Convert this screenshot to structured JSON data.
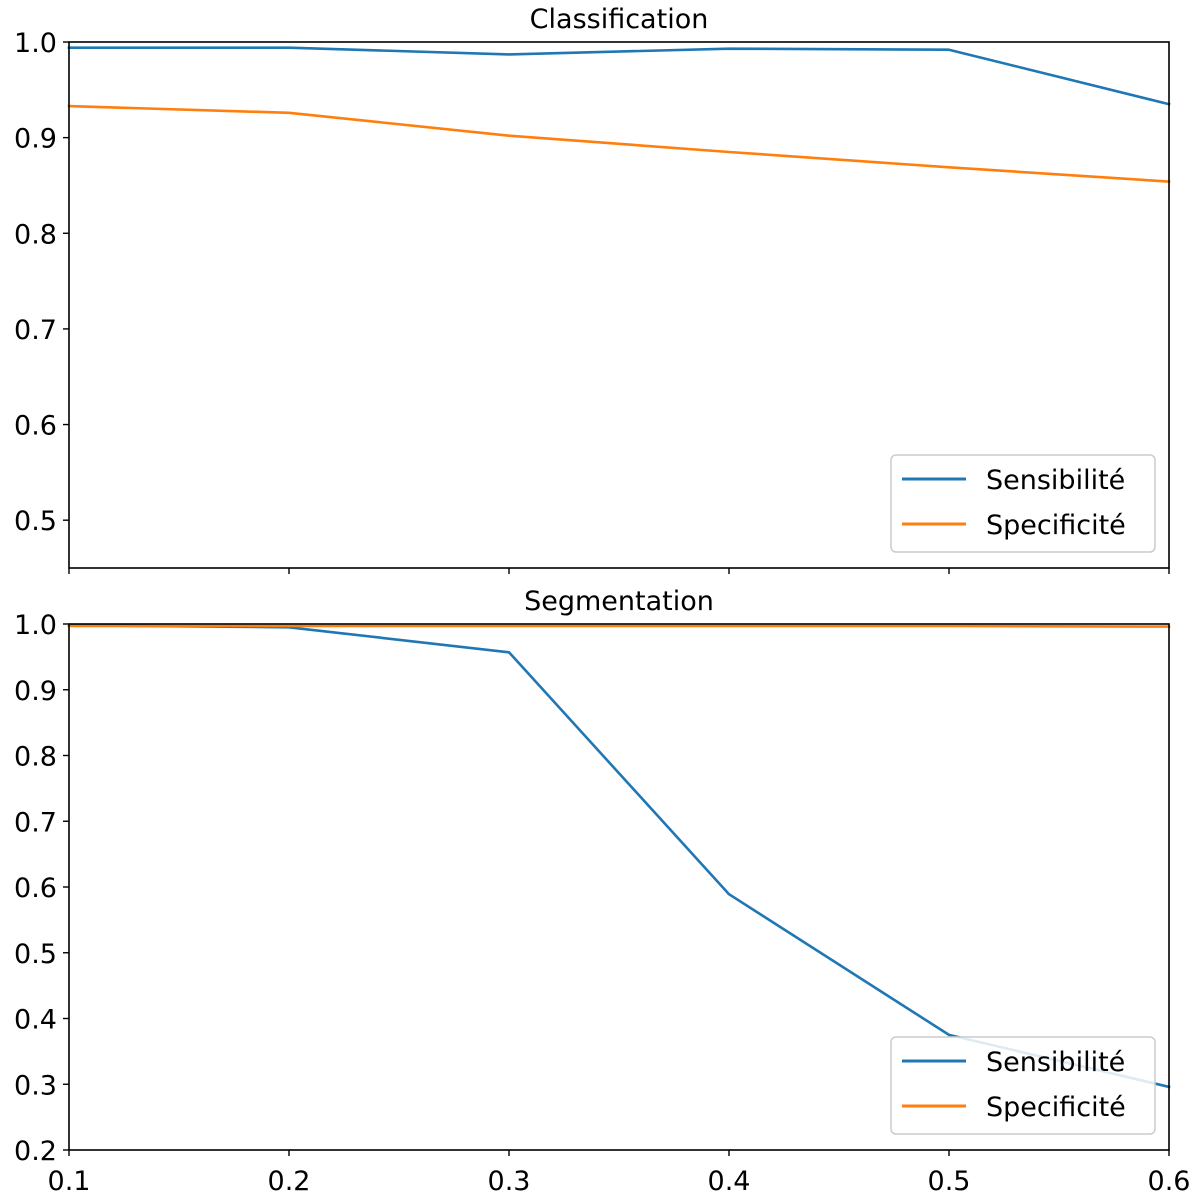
{
  "colors": {
    "sensibilite": "#1f77b4",
    "specificite": "#ff7f0e",
    "axes": "#000000",
    "legend_border": "#cccccc"
  },
  "chart_data": [
    {
      "type": "line",
      "title": "Classification",
      "x": [
        0.1,
        0.2,
        0.3,
        0.4,
        0.5,
        0.6
      ],
      "xlim": [
        0.1,
        0.6
      ],
      "ylim": [
        0.45,
        1.0
      ],
      "yticks": [
        "0.5",
        "0.6",
        "0.7",
        "0.8",
        "0.9",
        "1.0"
      ],
      "ytick_values": [
        0.5,
        0.6,
        0.7,
        0.8,
        0.9,
        1.0
      ],
      "xticks": [],
      "xtick_values": [
        0.1,
        0.2,
        0.3,
        0.4,
        0.5,
        0.6
      ],
      "legend_position": "lower-right",
      "grid": false,
      "series": [
        {
          "name": "Sensibilité",
          "color": "#1f77b4",
          "values": [
            0.994,
            0.994,
            0.987,
            0.993,
            0.992,
            0.935
          ]
        },
        {
          "name": "Specificité",
          "color": "#ff7f0e",
          "values": [
            0.933,
            0.926,
            0.902,
            0.885,
            0.869,
            0.854
          ]
        }
      ]
    },
    {
      "type": "line",
      "title": "Segmentation",
      "x": [
        0.1,
        0.2,
        0.3,
        0.4,
        0.5,
        0.6
      ],
      "xlim": [
        0.1,
        0.6
      ],
      "ylim": [
        0.2,
        1.0
      ],
      "yticks": [
        "0.2",
        "0.3",
        "0.4",
        "0.5",
        "0.6",
        "0.7",
        "0.8",
        "0.9",
        "1.0"
      ],
      "ytick_values": [
        0.2,
        0.3,
        0.4,
        0.5,
        0.6,
        0.7,
        0.8,
        0.9,
        1.0
      ],
      "xticks": [
        "0.1",
        "0.2",
        "0.3",
        "0.4",
        "0.5",
        "0.6"
      ],
      "xtick_values": [
        0.1,
        0.2,
        0.3,
        0.4,
        0.5,
        0.6
      ],
      "legend_position": "lower-right",
      "grid": false,
      "series": [
        {
          "name": "Sensibilité",
          "color": "#1f77b4",
          "values": [
            0.998,
            0.995,
            0.957,
            0.589,
            0.375,
            0.296
          ]
        },
        {
          "name": "Specificité",
          "color": "#ff7f0e",
          "values": [
            0.997,
            0.997,
            0.997,
            0.997,
            0.997,
            0.996
          ]
        }
      ]
    }
  ]
}
